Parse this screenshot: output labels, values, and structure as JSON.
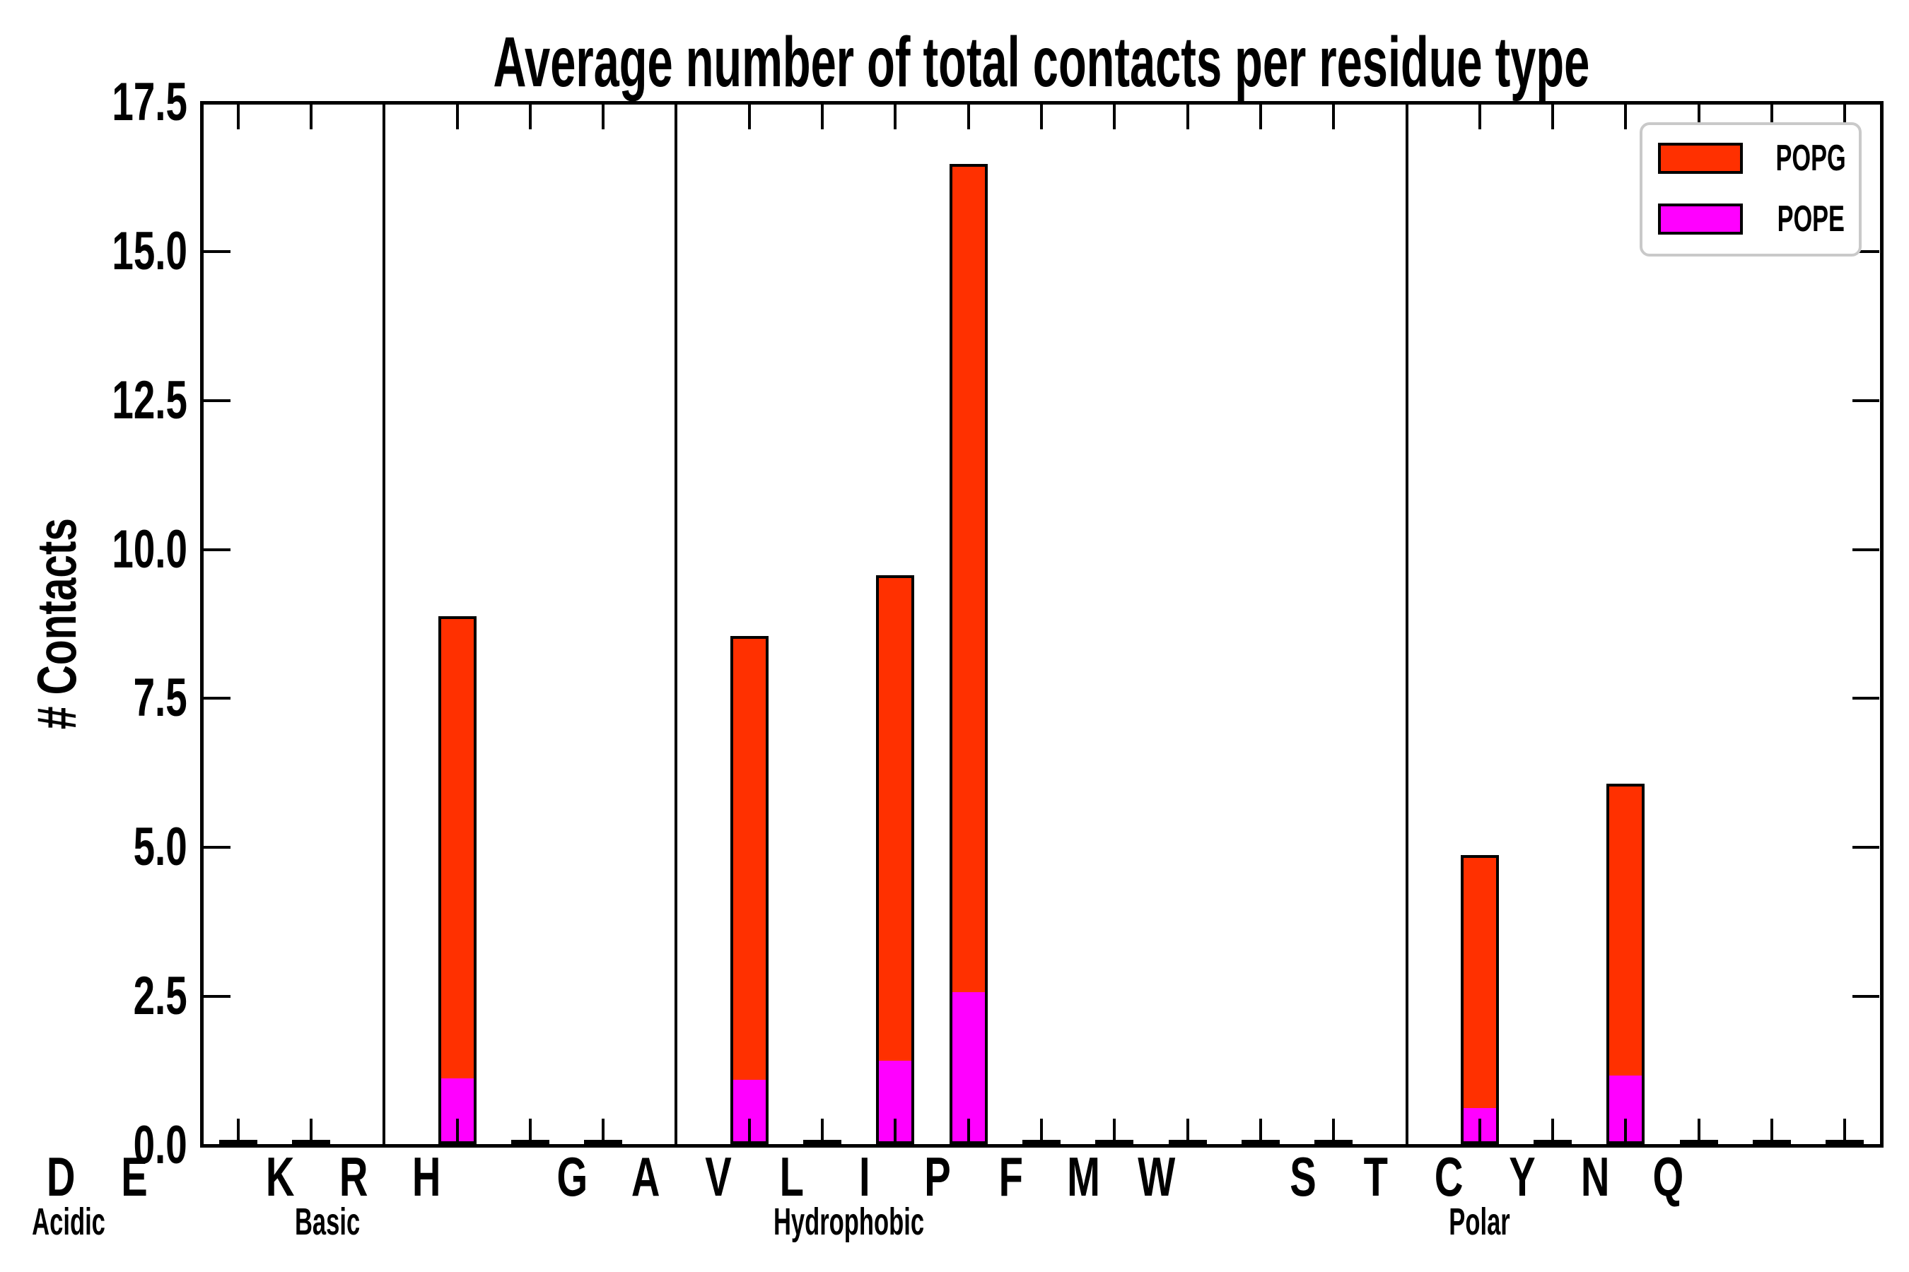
{
  "title": "Average number of total contacts per residue type",
  "y_axis": {
    "label": "# Contacts",
    "tick_labels": [
      "0.0",
      "2.5",
      "5.0",
      "7.5",
      "10.0",
      "12.5",
      "15.0",
      "17.5"
    ],
    "min": 0,
    "max": 17.5
  },
  "legend": {
    "position": "upper right",
    "items": [
      {
        "label": "POPG",
        "color": "#FF3000"
      },
      {
        "label": "POPE",
        "color": "#FF00FF"
      }
    ]
  },
  "chart_data": {
    "type": "bar",
    "stacked": true,
    "title": "Average number of total contacts per residue type",
    "xlabel": "",
    "ylabel": "# Contacts",
    "ylim": [
      0,
      17.5
    ],
    "ytick_step": 2.5,
    "grid": false,
    "categories": [
      "D",
      "E",
      "K",
      "R",
      "H",
      "G",
      "A",
      "V",
      "L",
      "I",
      "P",
      "F",
      "M",
      "W",
      "S",
      "T",
      "C",
      "Y",
      "N",
      "Q"
    ],
    "groups": [
      {
        "name": "Acidic",
        "members": [
          "D",
          "E"
        ]
      },
      {
        "name": "Basic",
        "members": [
          "K",
          "R",
          "H"
        ]
      },
      {
        "name": "Hydrophobic",
        "members": [
          "G",
          "A",
          "V",
          "L",
          "I",
          "P",
          "F",
          "M",
          "W"
        ]
      },
      {
        "name": "Polar",
        "members": [
          "S",
          "T",
          "C",
          "Y",
          "N",
          "Q"
        ]
      }
    ],
    "series": [
      {
        "name": "POPE",
        "color": "#FF00FF",
        "values": [
          0,
          0,
          1.15,
          0,
          0,
          1.13,
          0,
          1.45,
          2.6,
          0,
          0,
          0,
          0,
          0,
          0.65,
          0,
          1.2,
          0,
          0,
          0
        ]
      },
      {
        "name": "POPG",
        "color": "#FF3000",
        "values": [
          0,
          0,
          7.75,
          0,
          0,
          7.45,
          0,
          8.15,
          13.9,
          0,
          0,
          0,
          0,
          0,
          4.25,
          0,
          4.9,
          0,
          0,
          0
        ]
      }
    ],
    "totals": [
      0,
      0,
      8.9,
      0,
      0,
      8.58,
      0,
      9.6,
      16.5,
      0,
      0,
      0,
      0,
      0,
      4.9,
      0,
      6.1,
      0,
      0,
      0
    ]
  }
}
